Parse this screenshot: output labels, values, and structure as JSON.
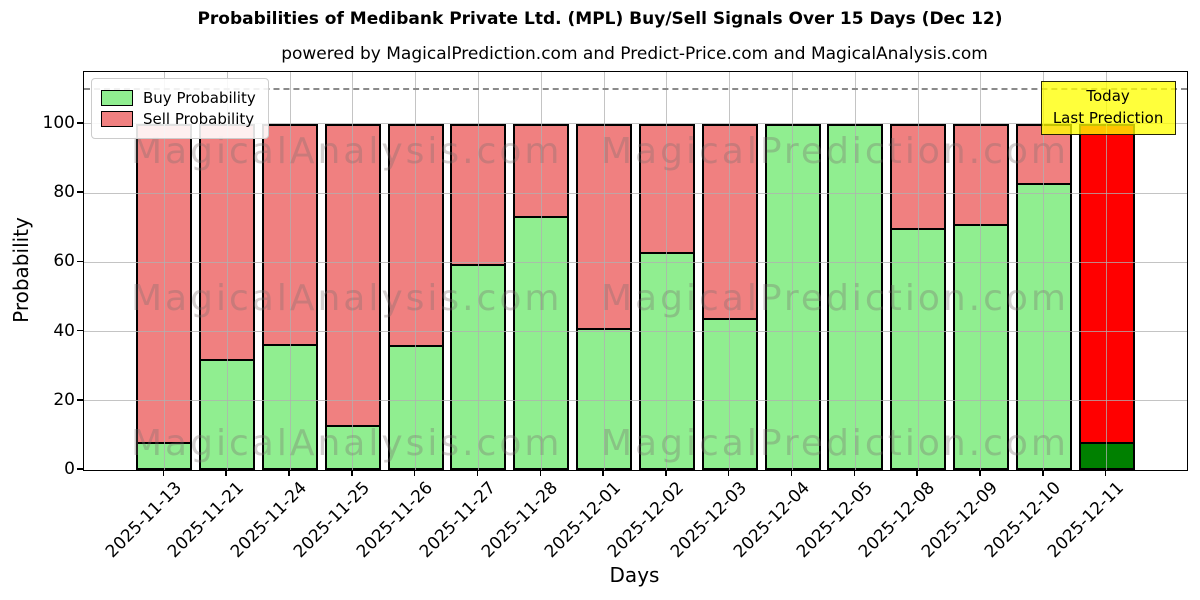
{
  "title": "Probabilities of Medibank Private Ltd. (MPL) Buy/Sell Signals Over 15 Days (Dec 12)",
  "subtitle": "powered by MagicalPrediction.com and Predict-Price.com and MagicalAnalysis.com",
  "legend": {
    "items": [
      {
        "label": "Buy Probability",
        "color": "#90EE90"
      },
      {
        "label": "Sell Probability",
        "color": "#F08080"
      }
    ]
  },
  "annotation": {
    "line1": "Today",
    "line2": "Last Prediction",
    "bg_color": "#FFFF00",
    "border_color": "#000000"
  },
  "watermarks": {
    "left_text": "MagicalAnalysis.com",
    "right_text": "MagicalPrediction.com"
  },
  "chart_data": {
    "type": "bar",
    "stacked": true,
    "title": "Probabilities of Medibank Private Ltd. (MPL) Buy/Sell Signals Over 15 Days (Dec 12)",
    "xlabel": "Days",
    "ylabel": "Probability",
    "ylim": [
      0,
      115
    ],
    "yticks": [
      0,
      20,
      40,
      60,
      80,
      100
    ],
    "dashed_line_y": 110,
    "grid": true,
    "legend_position": "upper left",
    "categories": [
      "2025-11-13",
      "2025-11-21",
      "2025-11-24",
      "2025-11-25",
      "2025-11-26",
      "2025-11-27",
      "2025-11-28",
      "2025-12-01",
      "2025-12-02",
      "2025-12-03",
      "2025-12-04",
      "2025-12-05",
      "2025-12-08",
      "2025-12-09",
      "2025-12-10",
      "2025-12-11"
    ],
    "series": [
      {
        "name": "Buy Probability",
        "color": "#90EE90",
        "last_bar_color": "#008000",
        "values": [
          8,
          32,
          36.5,
          13,
          36,
          59.5,
          73.5,
          41,
          63,
          44,
          100,
          100,
          70,
          71,
          83,
          8
        ]
      },
      {
        "name": "Sell Probability",
        "color": "#F08080",
        "last_bar_color": "#FF0000",
        "values": [
          92,
          68,
          63.5,
          87,
          64,
          40.5,
          26.5,
          59,
          37,
          56,
          0,
          0,
          30,
          29,
          17,
          92
        ]
      }
    ]
  }
}
